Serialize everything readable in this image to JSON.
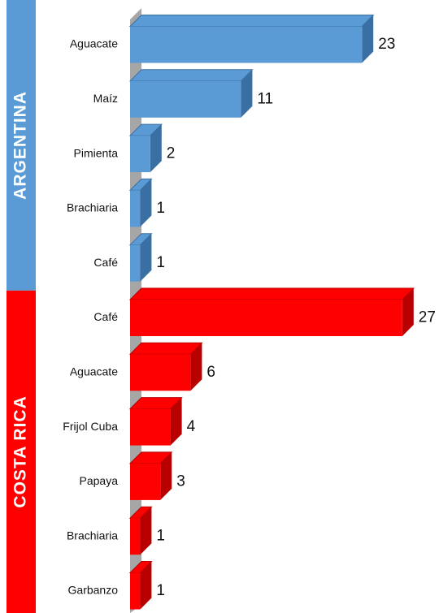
{
  "chart_data": {
    "type": "bar",
    "orientation": "horizontal",
    "groups": [
      {
        "name": "ARGENTINA",
        "color": "#5b9bd5",
        "shade": "#3a6fa3",
        "categories": [
          "Aguacate",
          "Maíz",
          "Pimienta",
          "Brachiaria",
          "Café"
        ],
        "values": [
          23,
          11,
          2,
          1,
          1
        ]
      },
      {
        "name": "COSTA RICA",
        "color": "#ff0000",
        "shade": "#b80000",
        "categories": [
          "Café",
          "Aguacate",
          "Frijol Cuba",
          "Papaya",
          "Brachiaria",
          "Garbanzo"
        ],
        "values": [
          27,
          6,
          4,
          3,
          1,
          1
        ]
      }
    ]
  }
}
